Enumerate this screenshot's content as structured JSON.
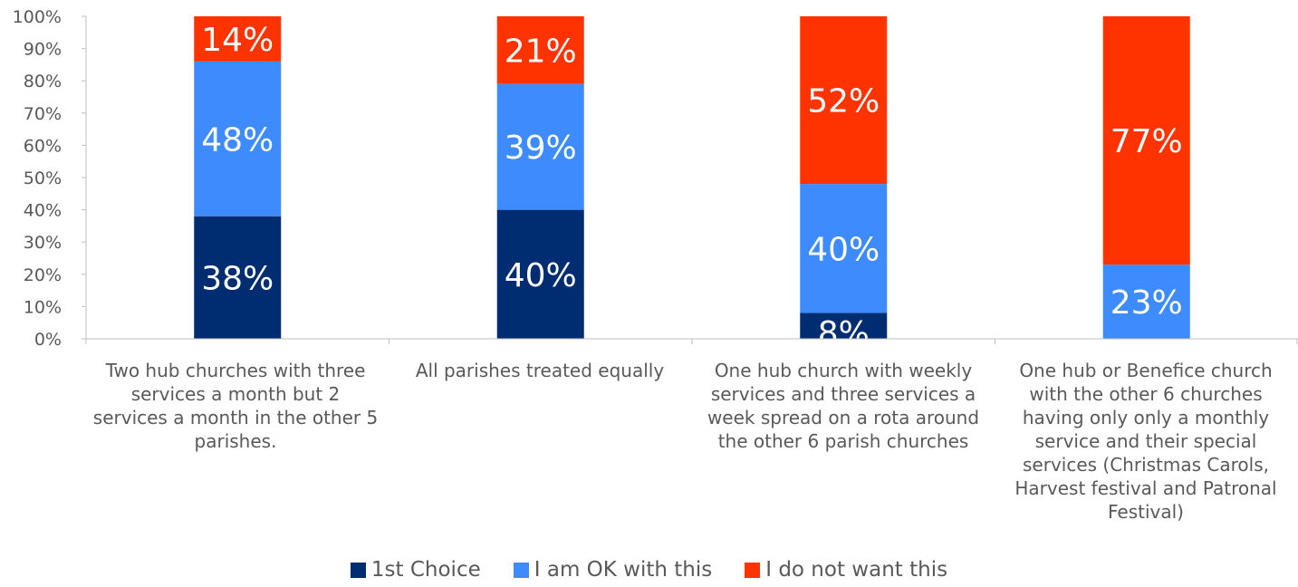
{
  "chart_data": {
    "type": "bar",
    "stacked": true,
    "categories": [
      "Two hub churches with three services a month but 2 services a month in the other 5 parishes.",
      "All parishes treated equally",
      "One hub church with weekly services and three services a week spread on a rota around the other 6 parish churches",
      "One hub or Benefice church with the other 6 churches having only only a monthly service and their special services (Christmas Carols, Harvest festival and Patronal Festival)"
    ],
    "series": [
      {
        "name": "1st Choice",
        "color": "#002D72",
        "values": [
          38,
          40,
          8,
          0
        ],
        "labels": [
          "38%",
          "40%",
          "8%",
          ""
        ]
      },
      {
        "name": "I am OK with this",
        "color": "#3D8BFD",
        "values": [
          48,
          39,
          40,
          23
        ],
        "labels": [
          "48%",
          "39%",
          "40%",
          "23%"
        ]
      },
      {
        "name": "I do not want this",
        "color": "#FF3300",
        "values": [
          14,
          21,
          52,
          77
        ],
        "labels": [
          "14%",
          "21%",
          "52%",
          "77%"
        ]
      }
    ],
    "yticks": [
      "0%",
      "10%",
      "20%",
      "30%",
      "40%",
      "50%",
      "60%",
      "70%",
      "80%",
      "90%",
      "100%"
    ],
    "ylim": [
      0,
      100
    ],
    "legend_position": "bottom",
    "grid": false
  }
}
